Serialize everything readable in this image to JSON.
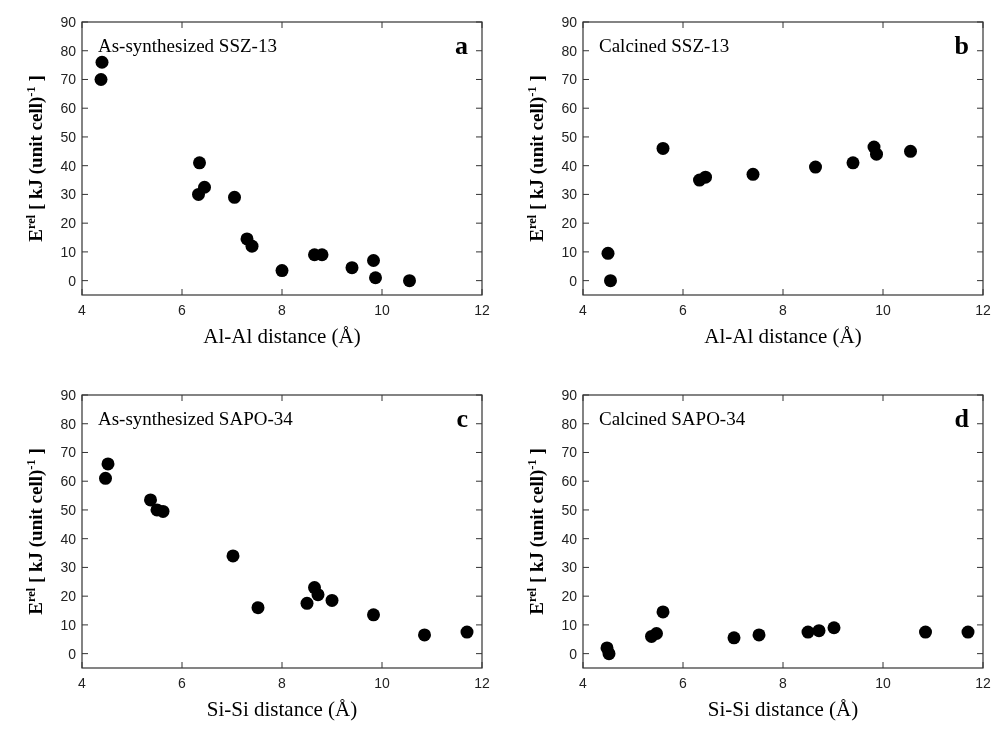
{
  "chart_data": [
    {
      "type": "scatter",
      "xlabel": "Al-Al distance (Å)",
      "ylabel": "E$^{rel}$ [ kJ (unit cell)$^{-1}$ ]",
      "xlim": [
        4,
        12
      ],
      "ylim": [
        -5,
        90
      ],
      "xticks": [
        4,
        6,
        8,
        10,
        12
      ],
      "yticks": [
        0,
        10,
        20,
        30,
        40,
        50,
        60,
        70,
        80,
        90
      ],
      "marker": "circle",
      "annotations": [
        "As-synthesized SSZ-13",
        "a"
      ],
      "series": [
        {
          "color": "#000000",
          "x": [
            4.4,
            4.38,
            6.35,
            6.33,
            6.45,
            7.05,
            7.3,
            7.4,
            8.0,
            8.65,
            8.8,
            9.4,
            9.83,
            9.87,
            10.55
          ],
          "values": [
            76,
            70,
            41,
            30,
            32.5,
            29,
            14.5,
            12,
            3.5,
            9,
            9,
            4.5,
            7,
            1,
            0
          ]
        }
      ]
    },
    {
      "type": "scatter",
      "xlabel": "Al-Al distance (Å)",
      "ylabel": "E$^{rel}$ [ kJ (unit cell)$^{-1}$ ]",
      "xlim": [
        4,
        12
      ],
      "ylim": [
        -5,
        90
      ],
      "xticks": [
        4,
        6,
        8,
        10,
        12
      ],
      "yticks": [
        0,
        10,
        20,
        30,
        40,
        50,
        60,
        70,
        80,
        90
      ],
      "marker": "circle",
      "annotations": [
        "Calcined SSZ-13",
        "b"
      ],
      "series": [
        {
          "color": "#000000",
          "x": [
            4.5,
            4.55,
            5.6,
            6.33,
            6.45,
            7.4,
            8.65,
            9.4,
            9.82,
            9.87,
            10.55
          ],
          "values": [
            9.5,
            0,
            46,
            35,
            36,
            37,
            39.5,
            41,
            46.5,
            44,
            45
          ]
        }
      ]
    },
    {
      "type": "scatter",
      "xlabel": "Si-Si distance (Å)",
      "ylabel": "E$^{rel}$ [ kJ (unit cell)$^{-1}$ ]",
      "xlim": [
        4,
        12
      ],
      "ylim": [
        -5,
        90
      ],
      "xticks": [
        4,
        6,
        8,
        10,
        12
      ],
      "yticks": [
        0,
        10,
        20,
        30,
        40,
        50,
        60,
        70,
        80,
        90
      ],
      "marker": "circle",
      "annotations": [
        "As-synthesized SAPO-34",
        "c"
      ],
      "series": [
        {
          "color": "#000000",
          "x": [
            4.47,
            4.52,
            5.37,
            5.5,
            5.62,
            7.02,
            7.52,
            8.5,
            8.65,
            8.72,
            9.0,
            9.83,
            10.85,
            11.7
          ],
          "values": [
            61,
            66,
            53.5,
            50,
            49.5,
            34,
            16,
            17.5,
            23,
            20.5,
            18.5,
            13.5,
            6.5,
            7.5
          ]
        }
      ]
    },
    {
      "type": "scatter",
      "xlabel": "Si-Si distance (Å)",
      "ylabel": "E$^{rel}$ [ kJ (unit cell)$^{-1}$ ]",
      "xlim": [
        4,
        12
      ],
      "ylim": [
        -5,
        90
      ],
      "xticks": [
        4,
        6,
        8,
        10,
        12
      ],
      "yticks": [
        0,
        10,
        20,
        30,
        40,
        50,
        60,
        70,
        80,
        90
      ],
      "marker": "circle",
      "annotations": [
        "Calcined SAPO-34",
        "d"
      ],
      "series": [
        {
          "color": "#000000",
          "x": [
            4.48,
            4.52,
            5.37,
            5.47,
            5.6,
            7.02,
            7.52,
            8.5,
            8.65,
            8.72,
            9.02,
            10.85,
            11.7
          ],
          "values": [
            2,
            0,
            6,
            7,
            14.5,
            5.5,
            6.5,
            7.5,
            null,
            8,
            9,
            7.5,
            7.5
          ]
        }
      ]
    }
  ]
}
